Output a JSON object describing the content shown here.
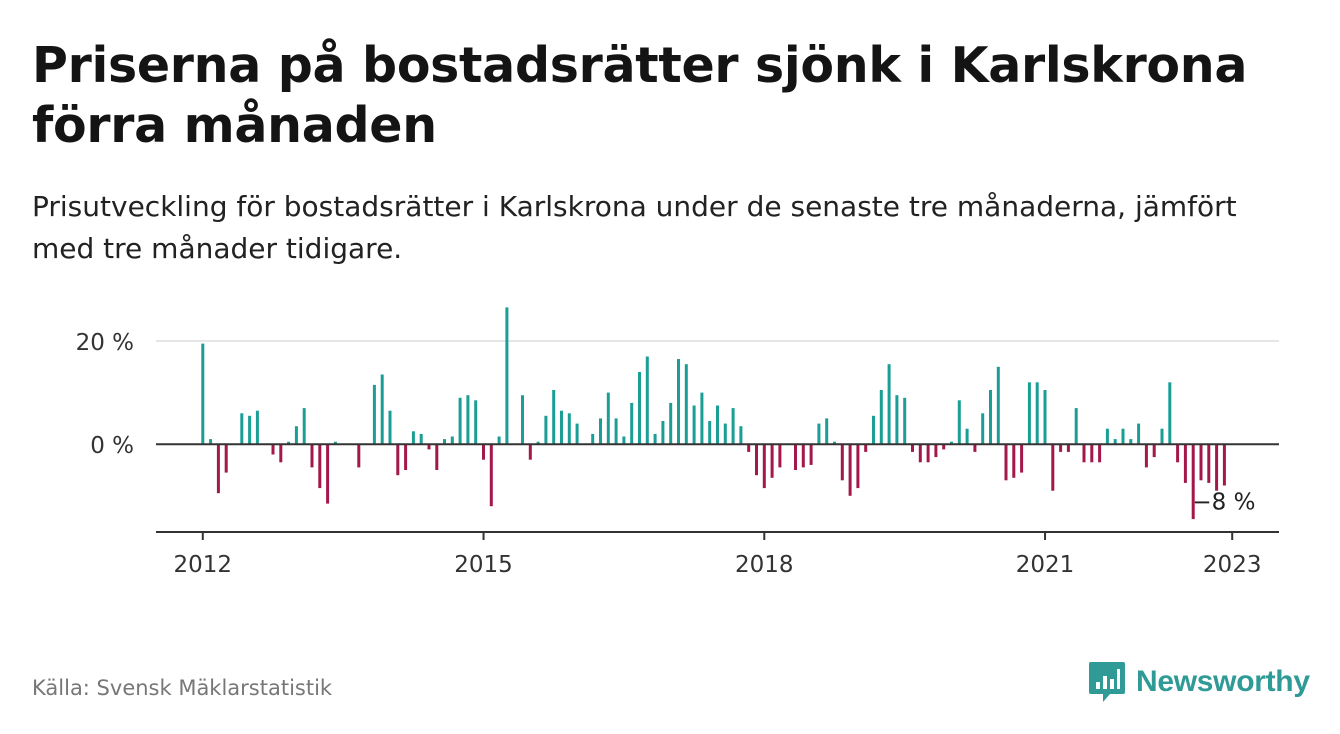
{
  "header": {
    "title": "Priserna på bostadsrätter sjönk i Karlskrona förra månaden",
    "subtitle": "Prisutveckling för bostadsrätter i Karlskrona under de senaste tre månaderna, jämfört med tre månader tidigare."
  },
  "footer": {
    "source": "Källa: Svensk Mäklarstatistik",
    "brand": "Newsworthy"
  },
  "colors": {
    "positive": "#1a9e96",
    "negative": "#a3174a",
    "grid": "#dddddd",
    "axis": "#333333",
    "brand": "#2f9a96"
  },
  "chart_data": {
    "type": "bar",
    "x_unit": "month",
    "y_unit": "percent",
    "yticks": [
      {
        "value": 0,
        "label": "0 %"
      },
      {
        "value": 20,
        "label": "20 %"
      }
    ],
    "xticks": [
      {
        "value": "2012-01",
        "label": "2012"
      },
      {
        "value": "2015-01",
        "label": "2015"
      },
      {
        "value": "2018-01",
        "label": "2018"
      },
      {
        "value": "2021-01",
        "label": "2021"
      },
      {
        "value": "2023-01",
        "label": "2023"
      }
    ],
    "ylim": [
      -17,
      26
    ],
    "xlim": [
      "2011-07",
      "2023-07"
    ],
    "grid": true,
    "annotation": {
      "x": "2022-12",
      "y": -8,
      "label": "−8 %"
    },
    "points": [
      {
        "x": "2012-01",
        "y": 19.5
      },
      {
        "x": "2012-02",
        "y": 1
      },
      {
        "x": "2012-03",
        "y": -9.5
      },
      {
        "x": "2012-04",
        "y": -5.5
      },
      {
        "x": "2012-05",
        "y": 0
      },
      {
        "x": "2012-06",
        "y": 6
      },
      {
        "x": "2012-07",
        "y": 5.5
      },
      {
        "x": "2012-08",
        "y": 6.5
      },
      {
        "x": "2012-09",
        "y": 0
      },
      {
        "x": "2012-10",
        "y": -2
      },
      {
        "x": "2012-11",
        "y": -3.5
      },
      {
        "x": "2012-12",
        "y": 0.5
      },
      {
        "x": "2013-01",
        "y": 3.5
      },
      {
        "x": "2013-02",
        "y": 7
      },
      {
        "x": "2013-03",
        "y": -4.5
      },
      {
        "x": "2013-04",
        "y": -8.5
      },
      {
        "x": "2013-05",
        "y": -11.5
      },
      {
        "x": "2013-06",
        "y": 0.5
      },
      {
        "x": "2013-07",
        "y": 0
      },
      {
        "x": "2013-08",
        "y": 0
      },
      {
        "x": "2013-09",
        "y": -4.5
      },
      {
        "x": "2013-10",
        "y": 0
      },
      {
        "x": "2013-11",
        "y": 11.5
      },
      {
        "x": "2013-12",
        "y": 13.5
      },
      {
        "x": "2014-01",
        "y": 6.5
      },
      {
        "x": "2014-02",
        "y": -6
      },
      {
        "x": "2014-03",
        "y": -5
      },
      {
        "x": "2014-04",
        "y": 2.5
      },
      {
        "x": "2014-05",
        "y": 2
      },
      {
        "x": "2014-06",
        "y": -1
      },
      {
        "x": "2014-07",
        "y": -5
      },
      {
        "x": "2014-08",
        "y": 1
      },
      {
        "x": "2014-09",
        "y": 1.5
      },
      {
        "x": "2014-10",
        "y": 9
      },
      {
        "x": "2014-11",
        "y": 9.5
      },
      {
        "x": "2014-12",
        "y": 8.5
      },
      {
        "x": "2015-01",
        "y": -3
      },
      {
        "x": "2015-02",
        "y": -12
      },
      {
        "x": "2015-03",
        "y": 1.5
      },
      {
        "x": "2015-04",
        "y": 26.5
      },
      {
        "x": "2015-05",
        "y": 0
      },
      {
        "x": "2015-06",
        "y": 9.5
      },
      {
        "x": "2015-07",
        "y": -3
      },
      {
        "x": "2015-08",
        "y": 0.5
      },
      {
        "x": "2015-09",
        "y": 5.5
      },
      {
        "x": "2015-10",
        "y": 10.5
      },
      {
        "x": "2015-11",
        "y": 6.5
      },
      {
        "x": "2015-12",
        "y": 6
      },
      {
        "x": "2016-01",
        "y": 4
      },
      {
        "x": "2016-02",
        "y": 0
      },
      {
        "x": "2016-03",
        "y": 2
      },
      {
        "x": "2016-04",
        "y": 5
      },
      {
        "x": "2016-05",
        "y": 10
      },
      {
        "x": "2016-06",
        "y": 5
      },
      {
        "x": "2016-07",
        "y": 1.5
      },
      {
        "x": "2016-08",
        "y": 8
      },
      {
        "x": "2016-09",
        "y": 14
      },
      {
        "x": "2016-10",
        "y": 17
      },
      {
        "x": "2016-11",
        "y": 2
      },
      {
        "x": "2016-12",
        "y": 4.5
      },
      {
        "x": "2017-01",
        "y": 8
      },
      {
        "x": "2017-02",
        "y": 16.5
      },
      {
        "x": "2017-03",
        "y": 15.5
      },
      {
        "x": "2017-04",
        "y": 7.5
      },
      {
        "x": "2017-05",
        "y": 10
      },
      {
        "x": "2017-06",
        "y": 4.5
      },
      {
        "x": "2017-07",
        "y": 7.5
      },
      {
        "x": "2017-08",
        "y": 4
      },
      {
        "x": "2017-09",
        "y": 7
      },
      {
        "x": "2017-10",
        "y": 3.5
      },
      {
        "x": "2017-11",
        "y": -1.5
      },
      {
        "x": "2017-12",
        "y": -6
      },
      {
        "x": "2018-01",
        "y": -8.5
      },
      {
        "x": "2018-02",
        "y": -6.5
      },
      {
        "x": "2018-03",
        "y": -4.5
      },
      {
        "x": "2018-04",
        "y": 0
      },
      {
        "x": "2018-05",
        "y": -5
      },
      {
        "x": "2018-06",
        "y": -4.5
      },
      {
        "x": "2018-07",
        "y": -4
      },
      {
        "x": "2018-08",
        "y": 4
      },
      {
        "x": "2018-09",
        "y": 5
      },
      {
        "x": "2018-10",
        "y": 0.5
      },
      {
        "x": "2018-11",
        "y": -7
      },
      {
        "x": "2018-12",
        "y": -10
      },
      {
        "x": "2019-01",
        "y": -8.5
      },
      {
        "x": "2019-02",
        "y": -1.5
      },
      {
        "x": "2019-03",
        "y": 5.5
      },
      {
        "x": "2019-04",
        "y": 10.5
      },
      {
        "x": "2019-05",
        "y": 15.5
      },
      {
        "x": "2019-06",
        "y": 9.5
      },
      {
        "x": "2019-07",
        "y": 9
      },
      {
        "x": "2019-08",
        "y": -1.5
      },
      {
        "x": "2019-09",
        "y": -3.5
      },
      {
        "x": "2019-10",
        "y": -3.5
      },
      {
        "x": "2019-11",
        "y": -2.5
      },
      {
        "x": "2019-12",
        "y": -1
      },
      {
        "x": "2020-01",
        "y": 0.5
      },
      {
        "x": "2020-02",
        "y": 8.5
      },
      {
        "x": "2020-03",
        "y": 3
      },
      {
        "x": "2020-04",
        "y": -1.5
      },
      {
        "x": "2020-05",
        "y": 6
      },
      {
        "x": "2020-06",
        "y": 10.5
      },
      {
        "x": "2020-07",
        "y": 15
      },
      {
        "x": "2020-08",
        "y": -7
      },
      {
        "x": "2020-09",
        "y": -6.5
      },
      {
        "x": "2020-10",
        "y": -5.5
      },
      {
        "x": "2020-11",
        "y": 12
      },
      {
        "x": "2020-12",
        "y": 12
      },
      {
        "x": "2021-01",
        "y": 10.5
      },
      {
        "x": "2021-02",
        "y": -9
      },
      {
        "x": "2021-03",
        "y": -1.5
      },
      {
        "x": "2021-04",
        "y": -1.5
      },
      {
        "x": "2021-05",
        "y": 7
      },
      {
        "x": "2021-06",
        "y": -3.5
      },
      {
        "x": "2021-07",
        "y": -3.5
      },
      {
        "x": "2021-08",
        "y": -3.5
      },
      {
        "x": "2021-09",
        "y": 3
      },
      {
        "x": "2021-10",
        "y": 1
      },
      {
        "x": "2021-11",
        "y": 3
      },
      {
        "x": "2021-12",
        "y": 1
      },
      {
        "x": "2022-01",
        "y": 4
      },
      {
        "x": "2022-02",
        "y": -4.5
      },
      {
        "x": "2022-03",
        "y": -2.5
      },
      {
        "x": "2022-04",
        "y": 3
      },
      {
        "x": "2022-05",
        "y": 12
      },
      {
        "x": "2022-06",
        "y": -3.5
      },
      {
        "x": "2022-07",
        "y": -7.5
      },
      {
        "x": "2022-08",
        "y": -14.5
      },
      {
        "x": "2022-09",
        "y": -7
      },
      {
        "x": "2022-10",
        "y": -7.5
      },
      {
        "x": "2022-11",
        "y": -9
      },
      {
        "x": "2022-12",
        "y": -8
      }
    ]
  }
}
